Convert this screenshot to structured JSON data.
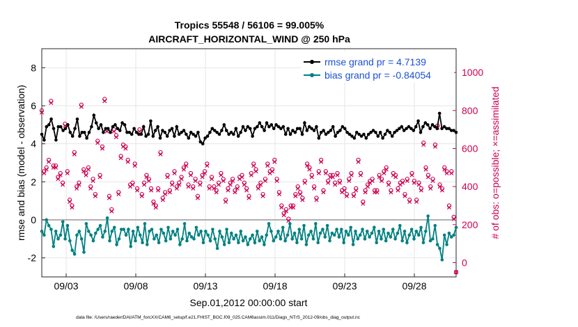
{
  "chart_data": {
    "type": "line",
    "title_line1": "Tropics 55548 / 56106 = 99.005%",
    "title_line2": "AIRCRAFT_HORIZONTAL_WIND @ 250 hPa",
    "ylabel_left": "rmse and bias (model - observation)",
    "ylabel_right": "# of obs: o=possible; ×=assimilated",
    "xlabel": "Sep.01,2012 00:00:00 start",
    "footnote": "data file: /Users/raeder/DAI/ATM_forcXX/CAM6_setup/f.e21.FHIST_BGC.f09_025.CAM6assim.011/Diags_NTrS_2012-09/obs_diag_output.nc",
    "x_range_days": [
      1.25,
      31.0
    ],
    "ylim_left": [
      -3,
      9
    ],
    "ylim_right": [
      -75,
      1125
    ],
    "x_ticks": [
      {
        "day": 3,
        "label": "09/03"
      },
      {
        "day": 8,
        "label": "09/08"
      },
      {
        "day": 13,
        "label": "09/13"
      },
      {
        "day": 18,
        "label": "09/18"
      },
      {
        "day": 23,
        "label": "09/23"
      },
      {
        "day": 28,
        "label": "09/28"
      }
    ],
    "y_ticks_left": [
      -2,
      0,
      2,
      4,
      6,
      8
    ],
    "y_ticks_right": [
      0,
      200,
      400,
      600,
      800,
      1000
    ],
    "zero_line": 0,
    "legend": [
      "rmse grand pr = 4.7139",
      "bias grand pr = -0.84054"
    ],
    "series": [
      {
        "name": "rmse grand pr = 4.7139",
        "axis": "left",
        "color": "#000000",
        "values": [
          4.5,
          4.2,
          4.9,
          5.0,
          5.3,
          4.8,
          4.2,
          4.9,
          4.9,
          4.7,
          4.8,
          5.0,
          4.6,
          4.4,
          4.8,
          5.3,
          4.4,
          4.6,
          4.6,
          4.3,
          4.6,
          4.9,
          5.5,
          5.1,
          4.8,
          5.0,
          4.6,
          4.8,
          4.8,
          4.6,
          4.9,
          5.0,
          4.8,
          4.7,
          5.1,
          5.0,
          4.6,
          4.6,
          4.5,
          4.8,
          4.6,
          4.5,
          4.5,
          4.9,
          4.4,
          4.5,
          5.2,
          4.4,
          4.7,
          4.9,
          4.3,
          4.7,
          4.6,
          4.4,
          4.7,
          4.8,
          4.4,
          4.9,
          4.5,
          4.6,
          4.7,
          4.5,
          4.3,
          4.6,
          4.5,
          4.4,
          4.6,
          4.1,
          4.0,
          4.3,
          4.4,
          4.6,
          4.8,
          4.7,
          4.6,
          4.5,
          4.7,
          5.0,
          4.7,
          4.5,
          4.6,
          4.5,
          4.8,
          4.4,
          4.6,
          4.9,
          4.7,
          4.9,
          4.8,
          4.4,
          4.8,
          4.9,
          5.1,
          4.9,
          4.7,
          5.1,
          4.9,
          5.0,
          4.8,
          5.0,
          4.9,
          4.8,
          4.9,
          4.5,
          4.8,
          4.5,
          4.7,
          4.6,
          4.8,
          4.8,
          4.5,
          5.1,
          4.7,
          4.9,
          4.8,
          4.7,
          4.9,
          4.3,
          4.6,
          4.7,
          4.5,
          4.6,
          4.7,
          4.9,
          4.4,
          4.6,
          4.7,
          4.9,
          4.8,
          4.6,
          4.5,
          4.4,
          4.3,
          4.6,
          4.5,
          4.4,
          4.5,
          4.3,
          4.5,
          4.6,
          4.7,
          4.6,
          4.4,
          4.6,
          4.3,
          4.5,
          4.7,
          4.6,
          4.4,
          4.6,
          4.7,
          4.8,
          4.9,
          4.7,
          4.8,
          4.9,
          4.8,
          4.7,
          4.9,
          5.2,
          4.6,
          4.9,
          5.1,
          5.0,
          4.8,
          5.0,
          4.9,
          4.8,
          5.6,
          4.8,
          4.9,
          4.8,
          4.8,
          4.7,
          4.7,
          4.6
        ]
      },
      {
        "name": "bias grand pr = -0.84054",
        "axis": "left",
        "color": "#008080",
        "values": [
          -0.6,
          -0.8,
          0.0,
          -0.3,
          -0.5,
          -1.4,
          -0.6,
          -1.0,
          -0.8,
          -0.1,
          -1.0,
          -0.3,
          -1.1,
          -1.6,
          -1.8,
          -0.8,
          -0.6,
          -1.0,
          -1.7,
          -0.2,
          -0.6,
          -0.8,
          -1.1,
          -0.7,
          -0.5,
          -0.3,
          -0.9,
          -0.6,
          0.1,
          -1.1,
          -0.6,
          -0.4,
          -1.3,
          -1.0,
          -0.5,
          -0.5,
          -0.8,
          -0.5,
          -1.4,
          -0.6,
          -1.1,
          -0.4,
          -0.8,
          -1.2,
          -0.2,
          -1.3,
          -0.6,
          -0.5,
          -1.0,
          -0.8,
          -1.2,
          -0.5,
          -0.7,
          -1.1,
          -0.4,
          -1.0,
          -0.6,
          -0.8,
          -0.5,
          -1.3,
          -1.0,
          -0.2,
          -1.1,
          -0.7,
          -0.9,
          -1.0,
          -0.4,
          -0.8,
          -0.6,
          -1.2,
          -0.6,
          -0.8,
          -1.1,
          -0.5,
          -1.0,
          -1.5,
          -0.6,
          -0.9,
          -1.3,
          -0.5,
          -1.2,
          -0.7,
          -1.0,
          -0.8,
          -1.2,
          -0.6,
          -1.1,
          -0.9,
          -1.3,
          -1.0,
          -0.8,
          -1.2,
          -0.6,
          -1.1,
          -0.9,
          -1.3,
          -0.8,
          -0.2,
          -0.6,
          -1.1,
          -0.9,
          -0.6,
          -1.0,
          -0.4,
          -1.1,
          -0.8,
          -0.2,
          -1.0,
          -0.7,
          -1.2,
          -0.5,
          -1.0,
          -0.3,
          -1.3,
          -0.8,
          -0.6,
          -1.0,
          -0.2,
          -1.2,
          -0.7,
          -0.5,
          -0.9,
          -0.3,
          -1.1,
          -0.7,
          -0.8,
          -0.5,
          -0.9,
          -0.5,
          -1.2,
          -0.6,
          -0.8,
          -0.4,
          -1.3,
          -0.6,
          -1.0,
          -0.8,
          -0.5,
          -1.0,
          -0.6,
          -0.9,
          -0.7,
          -0.4,
          -1.2,
          -0.6,
          -1.0,
          -0.5,
          -1.1,
          -0.7,
          -0.9,
          -0.5,
          -1.0,
          -0.7,
          -0.3,
          -1.1,
          -0.6,
          -1.2,
          -0.8,
          -0.5,
          -1.0,
          -0.6,
          -0.8,
          -0.4,
          -1.2,
          -0.6,
          0.2,
          -1.1,
          -1.0,
          -0.3,
          -1.3,
          -1.5,
          -2.1,
          -0.8,
          -1.3,
          -0.7,
          -0.9,
          -0.8,
          -0.4
        ]
      },
      {
        "name": "# of obs possible",
        "axis": "right",
        "marker": "o",
        "color": "#cc0052",
        "values": [
          800,
          480,
          500,
          540,
          850,
          510,
          510,
          450,
          470,
          420,
          730,
          480,
          330,
          300,
          580,
          400,
          420,
          830,
          490,
          470,
          500,
          400,
          440,
          360,
          640,
          460,
          610,
          860,
          700,
          350,
          280,
          700,
          670,
          370,
          560,
          620,
          610,
          540,
          410,
          420,
          520,
          390,
          700,
          360,
          420,
          460,
          440,
          390,
          320,
          300,
          390,
          580,
          340,
          370,
          460,
          380,
          420,
          480,
          400,
          420,
          450,
          500,
          520,
          410,
          470,
          400,
          440,
          350,
          420,
          460,
          480,
          520,
          400,
          450,
          400,
          380,
          420,
          470,
          440,
          330,
          390,
          420,
          440,
          380,
          400,
          450,
          460,
          420,
          390,
          350,
          470,
          520,
          490,
          400,
          420,
          360,
          440,
          520,
          480,
          490,
          540,
          440,
          370,
          300,
          260,
          280,
          230,
          300,
          300,
          360,
          400,
          370,
          340,
          430,
          520,
          500,
          460,
          400,
          340,
          480,
          540,
          380,
          480,
          430,
          460,
          460,
          420,
          470,
          430,
          380,
          390,
          360,
          440,
          470,
          360,
          390,
          540,
          470,
          320,
          380,
          410,
          430,
          440,
          380,
          380,
          460,
          440,
          480,
          500,
          420,
          380,
          470,
          460,
          390,
          420,
          430,
          360,
          440,
          330,
          470,
          430,
          330,
          420,
          390,
          630,
          500,
          460,
          400,
          440,
          620,
          720,
          410,
          390,
          500,
          480,
          300,
          480,
          240,
          -50
        ]
      },
      {
        "name": "# of obs assimilated",
        "axis": "right",
        "marker": "x",
        "color": "#cc0052",
        "values": [
          790,
          470,
          490,
          530,
          840,
          500,
          500,
          440,
          460,
          410,
          720,
          470,
          320,
          290,
          570,
          390,
          410,
          820,
          480,
          460,
          490,
          390,
          430,
          350,
          630,
          450,
          600,
          850,
          690,
          340,
          270,
          690,
          660,
          360,
          550,
          610,
          600,
          530,
          400,
          410,
          510,
          380,
          690,
          350,
          410,
          450,
          430,
          380,
          310,
          290,
          380,
          570,
          330,
          360,
          450,
          370,
          410,
          470,
          390,
          410,
          440,
          490,
          510,
          400,
          460,
          390,
          430,
          340,
          410,
          450,
          470,
          510,
          390,
          440,
          390,
          370,
          410,
          460,
          430,
          320,
          380,
          410,
          430,
          370,
          390,
          440,
          450,
          410,
          380,
          340,
          460,
          510,
          480,
          390,
          410,
          350,
          430,
          510,
          470,
          480,
          530,
          430,
          360,
          290,
          250,
          270,
          220,
          290,
          290,
          350,
          390,
          360,
          330,
          420,
          510,
          490,
          450,
          390,
          330,
          470,
          530,
          370,
          470,
          420,
          450,
          450,
          410,
          460,
          420,
          370,
          380,
          350,
          430,
          460,
          350,
          380,
          530,
          460,
          310,
          370,
          400,
          420,
          430,
          370,
          370,
          450,
          430,
          470,
          490,
          410,
          370,
          460,
          450,
          380,
          410,
          420,
          350,
          430,
          320,
          460,
          420,
          320,
          410,
          380,
          620,
          490,
          450,
          390,
          430,
          610,
          710,
          400,
          380,
          490,
          470,
          290,
          470,
          230,
          -50
        ]
      }
    ]
  }
}
